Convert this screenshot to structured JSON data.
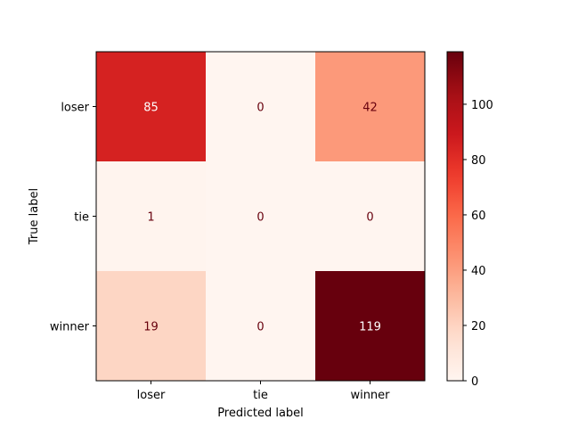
{
  "chart_data": {
    "type": "heatmap",
    "title": "",
    "xlabel": "Predicted label",
    "ylabel": "True label",
    "x_categories": [
      "loser",
      "tie",
      "winner"
    ],
    "y_categories": [
      "loser",
      "tie",
      "winner"
    ],
    "values": [
      [
        85,
        0,
        42
      ],
      [
        1,
        0,
        0
      ],
      [
        19,
        0,
        119
      ]
    ],
    "colormap": "Reds",
    "colorbar": {
      "range": [
        0,
        119
      ],
      "ticks": [
        0,
        20,
        40,
        60,
        80,
        100
      ]
    },
    "text_colors": {
      "light": "#ffffff",
      "dark": "#67000d"
    },
    "grid": false
  }
}
